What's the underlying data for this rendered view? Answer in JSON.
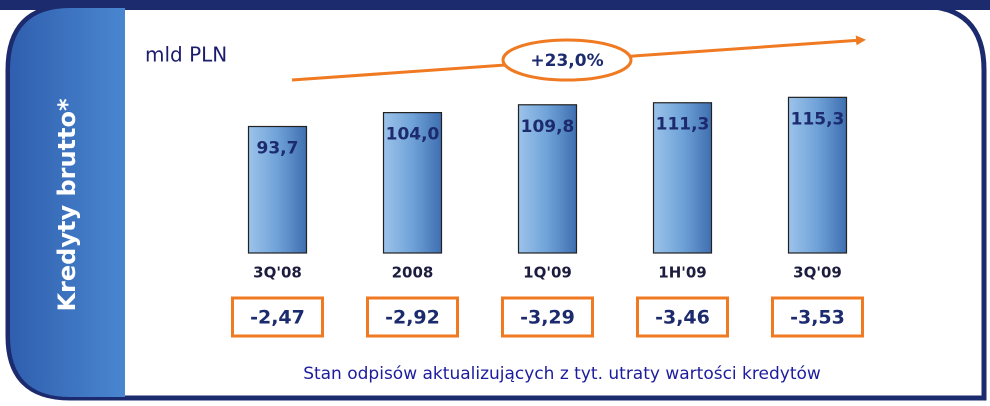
{
  "chart_data": {
    "type": "bar",
    "title": "Kredyty brutto*",
    "subtitle": "mld PLN",
    "annotation": "+23,0%",
    "categories": [
      "3Q'08",
      "2008",
      "1Q'09",
      "1H'09",
      "3Q'09"
    ],
    "values": [
      93.7,
      104.0,
      109.8,
      111.3,
      115.3
    ],
    "value_labels": [
      "93,7",
      "104,0",
      "109,8",
      "111,3",
      "115,3"
    ],
    "color": "#4f86c6",
    "ylim": [
      0,
      120
    ],
    "write_offs": {
      "label": "Stan odpisów aktualizujących z tyt. utraty wartości kredytów",
      "values": [
        -2.47,
        -2.92,
        -3.29,
        -3.46,
        -3.53
      ],
      "value_labels": [
        "-2,47",
        "-2,92",
        "-3,29",
        "-3,46",
        "-3,53"
      ],
      "color": "#f07a22"
    }
  }
}
